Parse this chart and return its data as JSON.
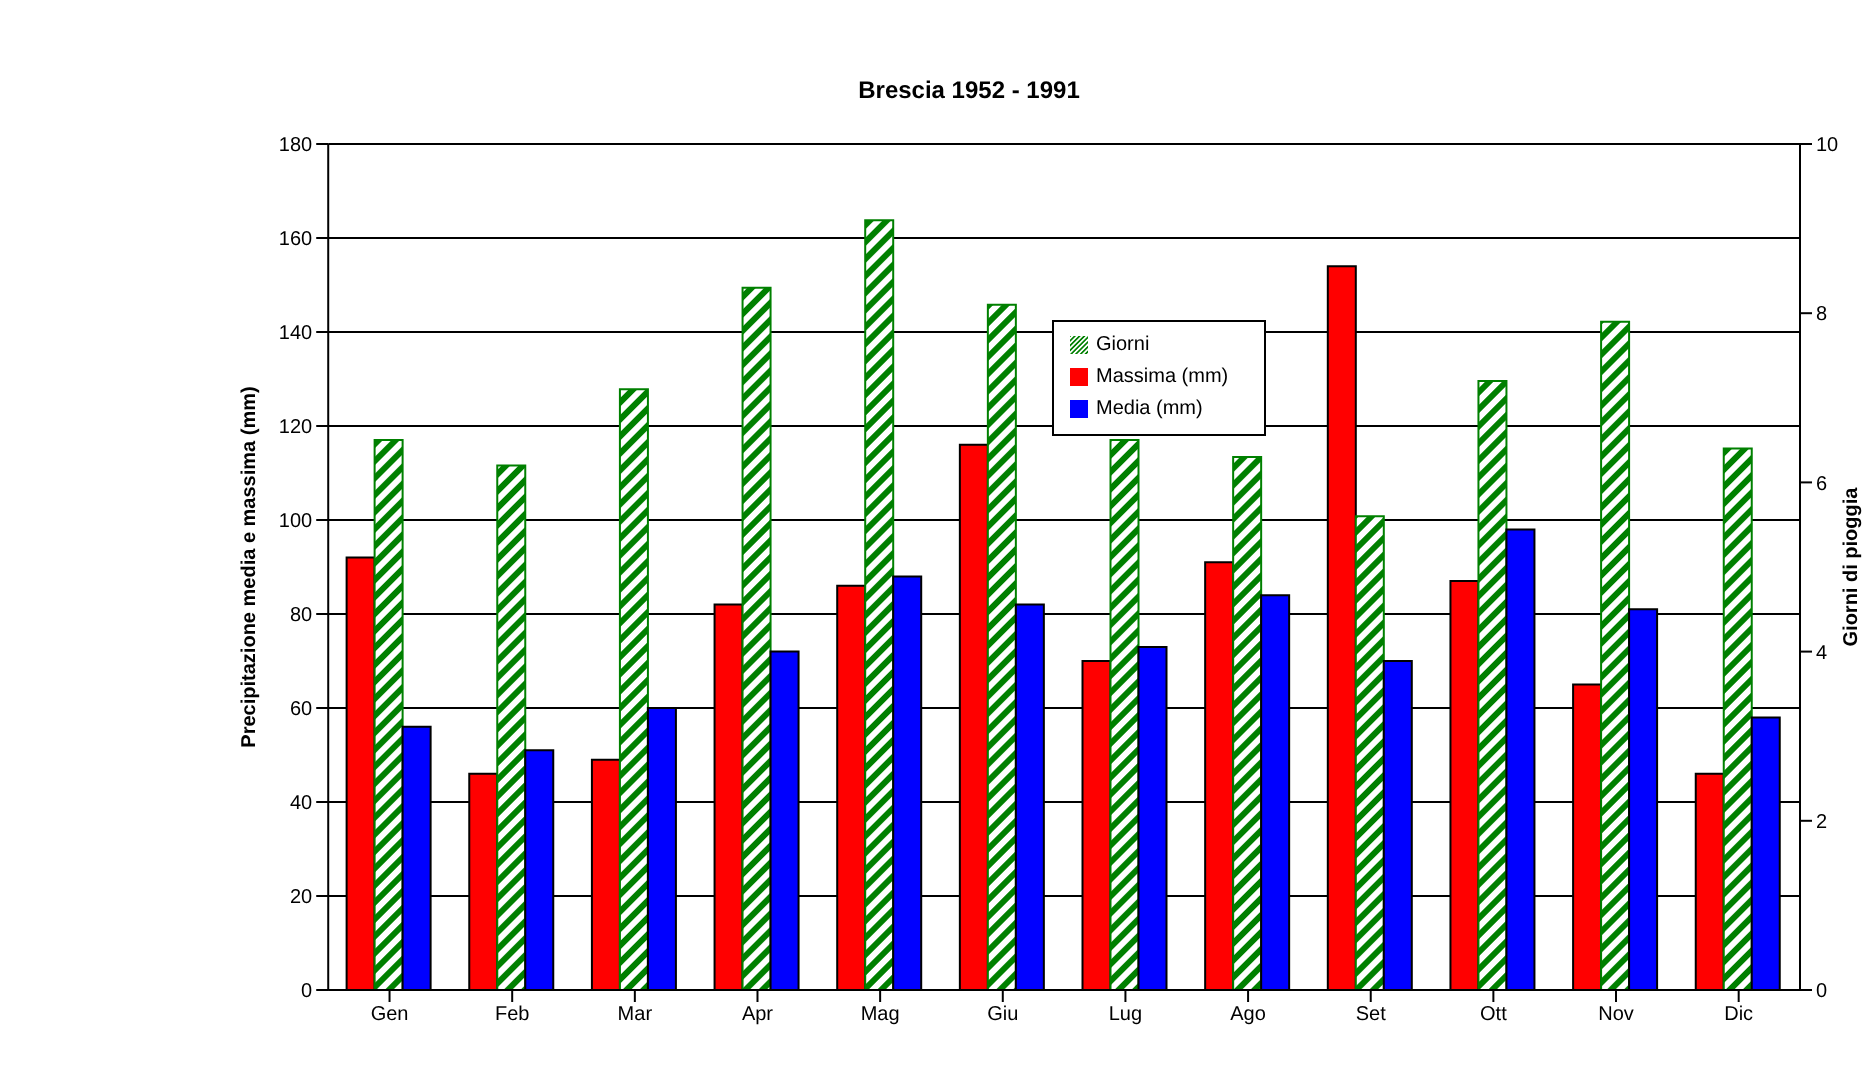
{
  "chart_data": {
    "type": "bar",
    "title": "Brescia 1952 - 1991",
    "ylabel": "Precipitazione media e massima (mm)",
    "y2label": "Giorni di pioggia",
    "categories": [
      "Gen",
      "Feb",
      "Mar",
      "Apr",
      "Mag",
      "Giu",
      "Lug",
      "Ago",
      "Set",
      "Ott",
      "Nov",
      "Dic"
    ],
    "series": [
      {
        "name": "Massima (mm)",
        "color": "#ff0000",
        "values": [
          92,
          46,
          49,
          82,
          86,
          116,
          70,
          91,
          154,
          87,
          65,
          46
        ]
      },
      {
        "name": "Giorni",
        "color": "#008000",
        "axis": "y2",
        "values": [
          6.5,
          6.2,
          7.1,
          8.3,
          9.1,
          8.1,
          6.5,
          6.3,
          5.6,
          7.2,
          7.9,
          6.4
        ]
      },
      {
        "name": "Media (mm)",
        "color": "#0000ff",
        "values": [
          56,
          51,
          60,
          72,
          88,
          82,
          73,
          84,
          70,
          98,
          81,
          58
        ]
      }
    ],
    "ylim": [
      0,
      180
    ],
    "yticks": [
      0,
      20,
      40,
      60,
      80,
      100,
      120,
      140,
      160,
      180
    ],
    "y2lim": [
      0,
      10
    ],
    "y2ticks": [
      0,
      2,
      4,
      6,
      8,
      10
    ],
    "grid": "y",
    "legend": "top"
  }
}
